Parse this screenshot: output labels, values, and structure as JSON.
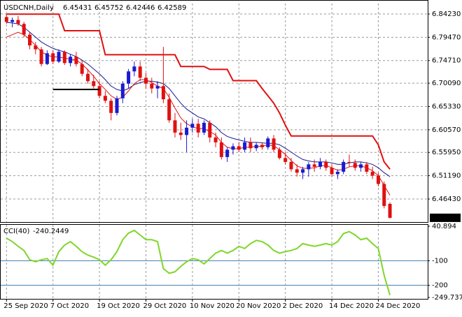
{
  "chart_data": [
    {
      "type": "candlestick",
      "title": "USDCNH,Daily",
      "up_color": "#1a1ad0",
      "down_color": "#e01010",
      "open": [
        6.836,
        6.826,
        6.83,
        6.822,
        6.8,
        6.778,
        6.77,
        6.74,
        6.762,
        6.745,
        6.765,
        6.742,
        6.755,
        6.74,
        6.72,
        6.705,
        6.695,
        6.675,
        6.665,
        6.64,
        6.67,
        6.7,
        6.725,
        6.735,
        6.712,
        6.7,
        6.69,
        6.695,
        6.668,
        6.625,
        6.6,
        6.595,
        6.61,
        6.618,
        6.6,
        6.62,
        6.59,
        6.58,
        6.55,
        6.565,
        6.572,
        6.565,
        6.58,
        6.568,
        6.575,
        6.57,
        6.588,
        6.565,
        6.548,
        6.54,
        6.525,
        6.518,
        6.525,
        6.535,
        6.53,
        6.54,
        6.528,
        6.515,
        6.52,
        6.54,
        6.538,
        6.528,
        6.535,
        6.52,
        6.512,
        6.495,
        6.45431
      ],
      "high": [
        6.842,
        6.835,
        6.838,
        6.826,
        6.805,
        6.785,
        6.775,
        6.768,
        6.768,
        6.77,
        6.768,
        6.76,
        6.765,
        6.748,
        6.73,
        6.718,
        6.705,
        6.685,
        6.67,
        6.675,
        6.705,
        6.73,
        6.745,
        6.745,
        6.722,
        6.712,
        6.705,
        6.775,
        6.68,
        6.64,
        6.62,
        6.625,
        6.628,
        6.628,
        6.625,
        6.625,
        6.6,
        6.59,
        6.57,
        6.578,
        6.58,
        6.59,
        6.59,
        6.58,
        6.58,
        6.592,
        6.595,
        6.57,
        6.56,
        6.548,
        6.535,
        6.53,
        6.54,
        6.545,
        6.548,
        6.545,
        6.535,
        6.525,
        6.545,
        6.555,
        6.545,
        6.54,
        6.54,
        6.53,
        6.518,
        6.5,
        6.45752
      ],
      "low": [
        6.822,
        6.815,
        6.818,
        6.795,
        6.77,
        6.76,
        6.735,
        6.738,
        6.74,
        6.742,
        6.738,
        6.735,
        6.735,
        6.715,
        6.7,
        6.69,
        6.67,
        6.66,
        6.625,
        6.635,
        6.66,
        6.69,
        6.715,
        6.705,
        6.69,
        6.68,
        6.67,
        6.66,
        6.62,
        6.59,
        6.585,
        6.56,
        6.6,
        6.59,
        6.595,
        6.58,
        6.57,
        6.545,
        6.54,
        6.555,
        6.56,
        6.56,
        6.56,
        6.562,
        6.565,
        6.565,
        6.56,
        6.545,
        6.535,
        6.52,
        6.51,
        6.505,
        6.51,
        6.52,
        6.525,
        6.522,
        6.51,
        6.505,
        6.515,
        6.53,
        6.522,
        6.52,
        6.515,
        6.505,
        6.49,
        6.445,
        6.42446
      ],
      "close": [
        6.826,
        6.83,
        6.822,
        6.8,
        6.778,
        6.77,
        6.74,
        6.762,
        6.745,
        6.765,
        6.742,
        6.755,
        6.74,
        6.72,
        6.705,
        6.695,
        6.675,
        6.665,
        6.64,
        6.67,
        6.7,
        6.725,
        6.735,
        6.712,
        6.7,
        6.69,
        6.695,
        6.668,
        6.625,
        6.6,
        6.595,
        6.61,
        6.618,
        6.6,
        6.62,
        6.59,
        6.58,
        6.55,
        6.565,
        6.572,
        6.565,
        6.58,
        6.568,
        6.575,
        6.57,
        6.588,
        6.565,
        6.548,
        6.54,
        6.525,
        6.518,
        6.525,
        6.535,
        6.53,
        6.54,
        6.528,
        6.515,
        6.52,
        6.54,
        6.538,
        6.528,
        6.535,
        6.52,
        6.512,
        6.495,
        6.45,
        6.42589
      ],
      "series": [
        {
          "color": "#e01010",
          "width": 2,
          "values": [
            6.842,
            6.842,
            6.842,
            6.842,
            6.842,
            6.842,
            6.842,
            6.842,
            6.842,
            6.842,
            6.808,
            6.808,
            6.808,
            6.808,
            6.808,
            6.808,
            6.808,
            6.759,
            6.759,
            6.759,
            6.759,
            6.759,
            6.759,
            6.759,
            6.759,
            6.759,
            6.759,
            6.759,
            6.759,
            6.759,
            6.735,
            6.735,
            6.735,
            6.735,
            6.735,
            6.729,
            6.729,
            6.729,
            6.729,
            6.706,
            6.706,
            6.706,
            6.706,
            6.706,
            6.69,
            6.675,
            6.66,
            6.64,
            6.615,
            6.593,
            6.593,
            6.593,
            6.593,
            6.593,
            6.593,
            6.593,
            6.593,
            6.593,
            6.593,
            6.593,
            6.593,
            6.593,
            6.593,
            6.593,
            6.575,
            6.54,
            6.525
          ]
        },
        {
          "color": "#1a1a90",
          "width": 1,
          "values": [
            6.825,
            6.824,
            6.822,
            6.815,
            6.805,
            6.795,
            6.785,
            6.778,
            6.772,
            6.768,
            6.765,
            6.76,
            6.755,
            6.748,
            6.74,
            6.73,
            6.72,
            6.708,
            6.695,
            6.688,
            6.685,
            6.69,
            6.698,
            6.702,
            6.705,
            6.705,
            6.703,
            6.7,
            6.69,
            6.675,
            6.66,
            6.648,
            6.64,
            6.632,
            6.628,
            6.62,
            6.612,
            6.6,
            6.592,
            6.588,
            6.585,
            6.582,
            6.58,
            6.58,
            6.579,
            6.578,
            6.578,
            6.575,
            6.568,
            6.56,
            6.552,
            6.545,
            6.542,
            6.54,
            6.54,
            6.54,
            6.538,
            6.535,
            6.535,
            6.538,
            6.54,
            6.54,
            6.538,
            6.535,
            6.528,
            6.518,
            6.51
          ]
        },
        {
          "color": "#e01010",
          "width": 1,
          "values": [
            6.795,
            6.8,
            6.805,
            6.8,
            6.79,
            6.778,
            6.765,
            6.758,
            6.755,
            6.754,
            6.752,
            6.75,
            6.748,
            6.74,
            6.728,
            6.715,
            6.7,
            6.688,
            6.675,
            6.668,
            6.672,
            6.685,
            6.7,
            6.708,
            6.708,
            6.702,
            6.695,
            6.69,
            6.672,
            6.65,
            6.63,
            6.618,
            6.612,
            6.608,
            6.608,
            6.602,
            6.595,
            6.58,
            6.57,
            6.567,
            6.567,
            6.57,
            6.57,
            6.572,
            6.572,
            6.575,
            6.573,
            6.565,
            6.555,
            6.543,
            6.532,
            6.527,
            6.527,
            6.528,
            6.532,
            6.533,
            6.528,
            6.523,
            6.525,
            6.53,
            6.532,
            6.532,
            6.528,
            6.522,
            6.512,
            6.492,
            6.472
          ]
        }
      ],
      "trendline": {
        "start": [
          8,
          6.688
        ],
        "end": [
          16,
          6.688
        ],
        "color": "#000000"
      },
      "xlim": [
        -1,
        72.5
      ],
      "ylim": [
        6.4172,
        6.8637
      ],
      "yticks": [
        {
          "value": 6.8423,
          "label": "6.84230"
        },
        {
          "value": 6.7947,
          "label": "6.79470"
        },
        {
          "value": 6.7471,
          "label": "6.74710"
        },
        {
          "value": 6.7009,
          "label": "6.70090"
        },
        {
          "value": 6.6533,
          "label": "6.65330"
        },
        {
          "value": 6.6057,
          "label": "6.60570"
        },
        {
          "value": 6.5595,
          "label": "6.55950"
        },
        {
          "value": 6.5119,
          "label": "6.51190"
        },
        {
          "value": 6.4643,
          "label": "6.46430"
        }
      ],
      "xticks": [
        {
          "value": 0,
          "label": "25 Sep 2020"
        },
        {
          "value": 8,
          "label": "7 Oct 2020"
        },
        {
          "value": 16,
          "label": "19 Oct 2020"
        },
        {
          "value": 24,
          "label": "29 Oct 2020"
        },
        {
          "value": 32,
          "label": "10 Nov 2020"
        },
        {
          "value": 40,
          "label": "20 Nov 2020"
        },
        {
          "value": 48,
          "label": "2 Dec 2020"
        },
        {
          "value": 56,
          "label": "14 Dec 2020"
        },
        {
          "value": 64,
          "label": "24 Dec 2020"
        }
      ],
      "grid": true
    },
    {
      "type": "line",
      "title": "CCI(40)",
      "color": "#7fd62a",
      "values": [
        -8,
        -22,
        -41,
        -58,
        -96,
        -104,
        -96,
        -91,
        -118,
        -63,
        -36,
        -22,
        -41,
        -63,
        -77,
        -85,
        -96,
        -118,
        -96,
        -63,
        -14,
        13,
        24,
        5,
        -14,
        -14,
        -22,
        -132,
        -151,
        -145,
        -123,
        -104,
        -91,
        -96,
        -113,
        -91,
        -69,
        -58,
        -69,
        -58,
        -41,
        -50,
        -30,
        -17,
        -22,
        -36,
        -58,
        -69,
        -63,
        -58,
        -50,
        -30,
        -36,
        -41,
        -36,
        -30,
        -36,
        -22,
        11,
        19,
        5,
        -14,
        -8,
        -30,
        -50,
        -159,
        -240.2449
      ],
      "ylim": [
        -249.7378,
        40.894
      ],
      "yticks": [
        40.894,
        -100,
        -200,
        -249.7378
      ],
      "level_color": "#4682b4"
    }
  ]
}
